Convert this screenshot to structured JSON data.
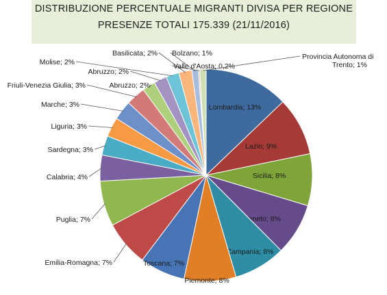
{
  "chart_data": {
    "type": "pie",
    "title": "DISTRIBUZIONE PERCENTUALE MIGRANTI DIVISA PER REGIONE",
    "subtitle": "PRESENZE TOTALI 175.339 (21/11/2016)",
    "slices": [
      {
        "label": "Lombardia; 13%",
        "value": 13,
        "color": "#3f6a9e"
      },
      {
        "label": "Lazio; 9%",
        "value": 9,
        "color": "#a53a36"
      },
      {
        "label": "Sicilia; 8%",
        "value": 8,
        "color": "#7fa53a"
      },
      {
        "label": "Veneto; 8%",
        "value": 8,
        "color": "#654b8a"
      },
      {
        "label": "Campania; 8%",
        "value": 8,
        "color": "#2e8da5"
      },
      {
        "label": "Piemonte; 8%",
        "value": 8,
        "color": "#e07f25"
      },
      {
        "label": "Toscana; 7%",
        "value": 7,
        "color": "#4774b5"
      },
      {
        "label": "Emilia-Romagna; 7%",
        "value": 7,
        "color": "#be4a47"
      },
      {
        "label": "Puglia; 7%",
        "value": 7,
        "color": "#91b74f"
      },
      {
        "label": "Calabria; 4%",
        "value": 4,
        "color": "#7a60a0"
      },
      {
        "label": "Sardegna; 3%",
        "value": 3,
        "color": "#4aabc6"
      },
      {
        "label": "Liguria; 3%",
        "value": 3,
        "color": "#f79a44"
      },
      {
        "label": "Marche; 3%",
        "value": 3,
        "color": "#6d90c9"
      },
      {
        "label": "Friuli-Venezia Giulia; 3%",
        "value": 3,
        "color": "#d27a77"
      },
      {
        "label": "Abruzzo; 2%",
        "value": 2,
        "color": "#aed07c"
      },
      {
        "label": "Abruzzo; 2%",
        "value": 2,
        "color": "#a392c2"
      },
      {
        "label": "Molise; 2%",
        "value": 2,
        "color": "#6dc3d8"
      },
      {
        "label": "Basilicata; 2%",
        "value": 2,
        "color": "#fab57b"
      },
      {
        "label": "Bolzano; 1%",
        "value": 1,
        "color": "#a6bde0"
      },
      {
        "label": "Valle d'Aosta; 0,2%",
        "value": 0.2,
        "color": "#e6a7a4"
      },
      {
        "label": "Provincia Autonoma di Trento; 1%",
        "value": 1,
        "color": "#cfe1b4"
      }
    ]
  }
}
